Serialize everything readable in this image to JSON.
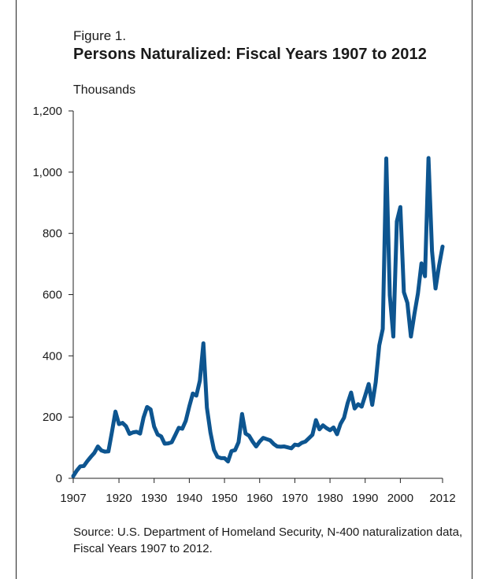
{
  "figure_label": "Figure 1.",
  "chart_data": {
    "type": "line",
    "title": "Persons Naturalized: Fiscal Years 1907 to 2012",
    "ylabel": "Thousands",
    "xlabel": "",
    "xlim": [
      1907,
      2012
    ],
    "ylim": [
      0,
      1200
    ],
    "xticks": [
      1907,
      1920,
      1930,
      1940,
      1950,
      1960,
      1970,
      1980,
      1990,
      2000,
      2012
    ],
    "yticks": [
      0,
      200,
      400,
      600,
      800,
      1000,
      1200
    ],
    "ytick_labels": [
      "0",
      "200",
      "400",
      "600",
      "800",
      "1,000",
      "1,200"
    ],
    "grid": false,
    "line_color": "#0d5590",
    "series": [
      {
        "name": "",
        "x": [
          1907,
          1908,
          1909,
          1910,
          1911,
          1912,
          1913,
          1914,
          1915,
          1916,
          1917,
          1918,
          1919,
          1920,
          1921,
          1922,
          1923,
          1924,
          1925,
          1926,
          1927,
          1928,
          1929,
          1930,
          1931,
          1932,
          1933,
          1934,
          1935,
          1936,
          1937,
          1938,
          1939,
          1940,
          1941,
          1942,
          1943,
          1944,
          1945,
          1946,
          1947,
          1948,
          1949,
          1950,
          1951,
          1952,
          1953,
          1954,
          1955,
          1956,
          1957,
          1958,
          1959,
          1960,
          1961,
          1962,
          1963,
          1964,
          1965,
          1966,
          1967,
          1968,
          1969,
          1970,
          1971,
          1972,
          1973,
          1974,
          1975,
          1976,
          1977,
          1978,
          1979,
          1980,
          1981,
          1982,
          1983,
          1984,
          1985,
          1986,
          1987,
          1988,
          1989,
          1990,
          1991,
          1992,
          1993,
          1994,
          1995,
          1996,
          1997,
          1998,
          1999,
          2000,
          2001,
          2002,
          2003,
          2004,
          2005,
          2006,
          2007,
          2008,
          2009,
          2010,
          2011,
          2012
        ],
        "values": [
          7,
          25,
          39,
          40,
          56,
          70,
          83,
          104,
          91,
          87,
          88,
          151,
          218,
          177,
          181,
          170,
          145,
          150,
          152,
          146,
          199,
          233,
          225,
          169,
          143,
          137,
          113,
          114,
          118,
          141,
          165,
          162,
          188,
          235,
          277,
          270,
          319,
          441,
          231,
          150,
          93,
          70,
          66,
          66,
          55,
          89,
          92,
          118,
          210,
          146,
          139,
          120,
          104,
          120,
          132,
          128,
          124,
          112,
          104,
          103,
          104,
          101,
          98,
          110,
          108,
          116,
          120,
          131,
          142,
          190,
          160,
          173,
          164,
          157,
          166,
          144,
          178,
          198,
          245,
          280,
          228,
          242,
          234,
          270,
          308,
          240,
          314,
          434,
          488,
          1045,
          598,
          463,
          839,
          886,
          608,
          573,
          463,
          537,
          604,
          702,
          660,
          1046,
          743,
          620,
          694,
          757
        ]
      }
    ]
  },
  "source_text": "Source: U.S. Department of Homeland Security, N-400 naturalization data, Fiscal Years 1907 to 2012."
}
